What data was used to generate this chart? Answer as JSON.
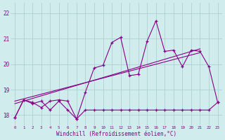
{
  "x_all": [
    0,
    1,
    2,
    3,
    4,
    5,
    6,
    7,
    8,
    9,
    10,
    11,
    12,
    13,
    14,
    15,
    16,
    17,
    18,
    19,
    20,
    21,
    22,
    23
  ],
  "line_wavy": [
    17.9,
    18.6,
    18.5,
    18.3,
    18.55,
    18.6,
    18.55,
    17.85,
    18.9,
    19.85,
    19.95,
    20.85,
    21.05,
    19.55,
    19.6,
    20.9,
    21.7,
    20.5,
    20.55,
    19.9,
    20.55,
    20.5,
    19.9,
    18.5
  ],
  "line_flat": [
    17.9,
    18.6,
    18.45,
    18.55,
    18.2,
    18.55,
    18.2,
    17.85,
    18.2,
    18.2,
    18.2,
    18.2,
    18.2,
    18.2,
    18.2,
    18.2,
    18.2,
    18.2,
    18.2,
    18.2,
    18.2,
    18.2,
    18.2,
    18.5
  ],
  "trend1_x": [
    0,
    21
  ],
  "trend1_y": [
    18.45,
    20.6
  ],
  "trend2_x": [
    0,
    21
  ],
  "trend2_y": [
    18.55,
    20.45
  ],
  "background_color": "#d0ecec",
  "grid_color": "#a8cccc",
  "line_color": "#880088",
  "xlim": [
    -0.5,
    23.5
  ],
  "ylim": [
    17.6,
    22.4
  ],
  "yticks": [
    18,
    19,
    20,
    21,
    22
  ],
  "xlabel": "Windchill (Refroidissement éolien,°C)"
}
